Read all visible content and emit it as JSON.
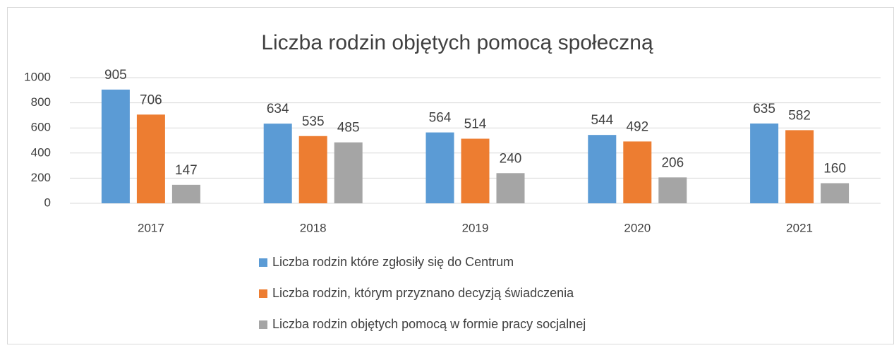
{
  "chart_data": {
    "type": "bar",
    "title": "Liczba rodzin objętych pomocą społeczną",
    "categories": [
      "2017",
      "2018",
      "2019",
      "2020",
      "2021"
    ],
    "series": [
      {
        "name": "Liczba rodzin które zgłosiły się do Centrum",
        "color": "#5b9bd5",
        "values": [
          905,
          634,
          564,
          544,
          635
        ]
      },
      {
        "name": "Liczba rodzin, którym przyznano decyzją świadczenia",
        "color": "#ed7d31",
        "values": [
          706,
          535,
          514,
          492,
          582
        ]
      },
      {
        "name": "Liczba rodzin objętych pomocą w formie pracy socjalnej",
        "color": "#a5a5a5",
        "values": [
          147,
          485,
          240,
          206,
          160
        ]
      }
    ],
    "ylim": [
      0,
      1000
    ],
    "yticks": [
      0,
      200,
      400,
      600,
      800,
      1000
    ],
    "grid": true,
    "legend": "bottom"
  }
}
